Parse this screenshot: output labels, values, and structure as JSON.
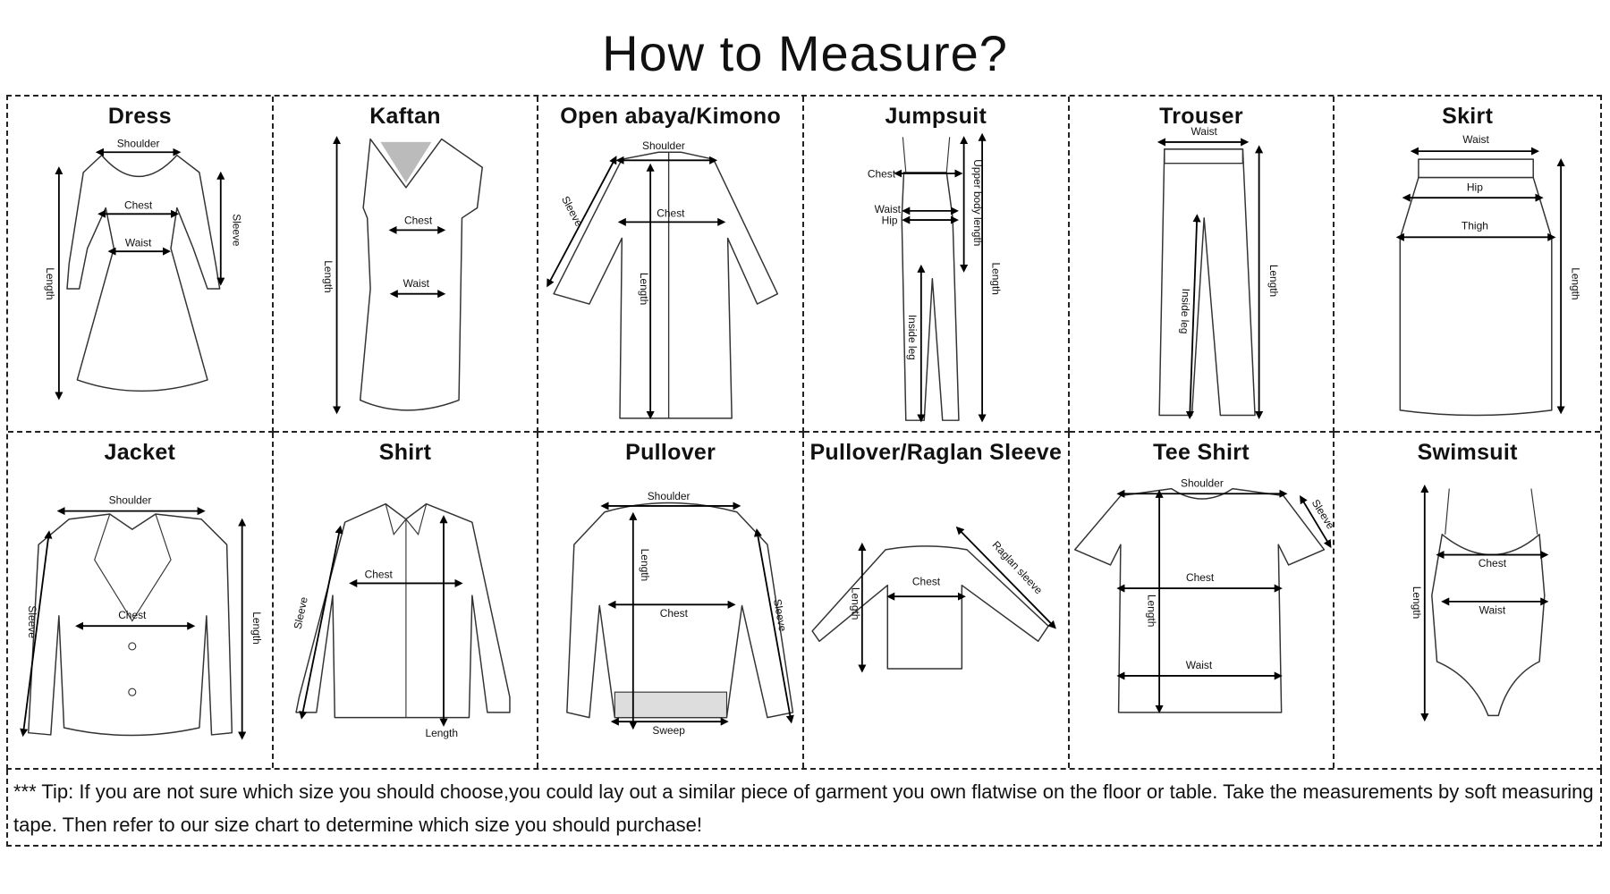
{
  "title": "How to Measure?",
  "cells": [
    {
      "title": "Dress",
      "labels": [
        "Shoulder",
        "Chest",
        "Waist",
        "Length",
        "Sleeve"
      ]
    },
    {
      "title": "Kaftan",
      "labels": [
        "Length",
        "Chest",
        "Waist"
      ]
    },
    {
      "title": "Open abaya/Kimono",
      "labels": [
        "Shoulder",
        "Sleeve",
        "Chest",
        "Length"
      ]
    },
    {
      "title": "Jumpsuit",
      "labels": [
        "Chest",
        "Waist",
        "Hip",
        "Upper body length",
        "Length",
        "Inside leg"
      ]
    },
    {
      "title": "Trouser",
      "labels": [
        "Waist",
        "Length",
        "Inside leg"
      ]
    },
    {
      "title": "Skirt",
      "labels": [
        "Waist",
        "Hip",
        "Thigh",
        "Length"
      ]
    },
    {
      "title": "Jacket",
      "labels": [
        "Shoulder",
        "Length",
        "Sleeve",
        "Chest"
      ]
    },
    {
      "title": "Shirt",
      "labels": [
        "Chest",
        "Sleeve",
        "Length"
      ]
    },
    {
      "title": "Pullover",
      "labels": [
        "Shoulder",
        "Length",
        "Chest",
        "Sleeve",
        "Sweep"
      ]
    },
    {
      "title": "Pullover/Raglan Sleeve",
      "labels": [
        "Length",
        "Chest",
        "Raglan sleeve"
      ]
    },
    {
      "title": "Tee Shirt",
      "labels": [
        "Shoulder",
        "Sleeve",
        "Chest",
        "Length",
        "Waist"
      ]
    },
    {
      "title": "Swimsuit",
      "labels": [
        "Length",
        "Chest",
        "Waist"
      ]
    }
  ],
  "tip": "*** Tip:  If you are not sure which size you should choose,you could lay out a similar piece of garment you own flatwise on the floor or table. Take the measurements by soft measuring tape. Then refer to our size chart to determine which size you should purchase!"
}
